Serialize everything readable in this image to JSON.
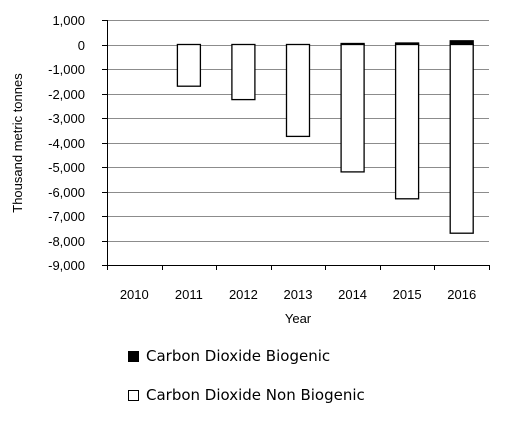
{
  "chart_data": {
    "type": "bar",
    "categories": [
      "2010",
      "2011",
      "2012",
      "2013",
      "2014",
      "2015",
      "2016"
    ],
    "series": [
      {
        "name": "Carbon Dioxide Biogenic",
        "color": "#000000",
        "values": [
          0,
          0,
          0,
          0,
          40,
          60,
          150
        ]
      },
      {
        "name": "Carbon Dioxide Non Biogenic",
        "color": "#ffffff",
        "values": [
          0,
          -1700,
          -2250,
          -3750,
          -5200,
          -6300,
          -7700
        ]
      }
    ],
    "xlabel": "Year",
    "ylabel": "Thousand metric tonnes",
    "ylim": [
      -9000,
      1000
    ],
    "yticks": [
      1000,
      0,
      -1000,
      -2000,
      -3000,
      -4000,
      -5000,
      -6000,
      -7000,
      -8000,
      -9000
    ],
    "ytick_labels": [
      "1,000",
      "0",
      "-1,000",
      "-2,000",
      "-3,000",
      "-4,000",
      "-5,000",
      "-6,000",
      "-7,000",
      "-8,000",
      "-9,000"
    ],
    "grid": true,
    "legend_position": "bottom"
  }
}
